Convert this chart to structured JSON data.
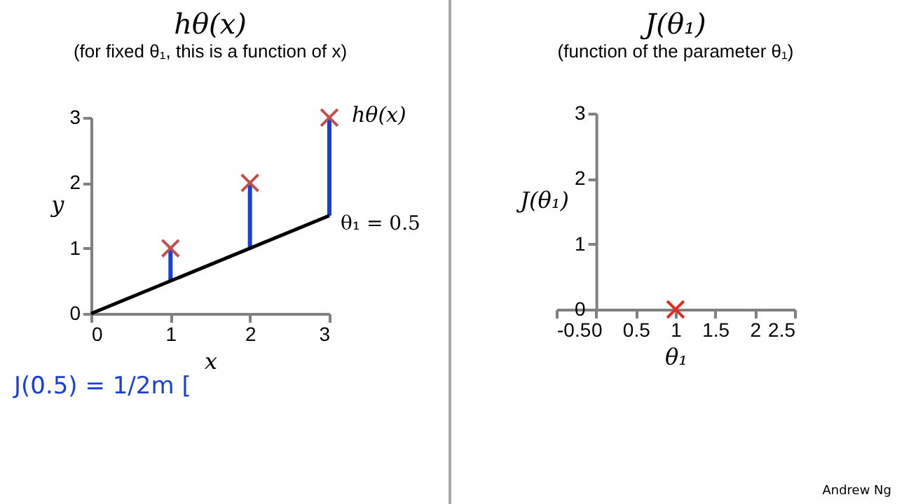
{
  "chart_data": [
    {
      "type": "scatter",
      "title": "hθ(x)",
      "subtitle": "(for fixed θ₁, this is a function of x)",
      "xlabel": "x",
      "ylabel": "y",
      "xlim": [
        0,
        3
      ],
      "ylim": [
        0,
        3
      ],
      "xticks": [
        0,
        1,
        2,
        3
      ],
      "yticks": [
        0,
        1,
        2,
        3
      ],
      "series": [
        {
          "marker": "cross",
          "color": "#c0504d",
          "x": [
            1,
            2,
            3
          ],
          "values": [
            1,
            2,
            3
          ],
          "errors": [
            [
              0.5,
              1
            ],
            [
              1,
              2
            ],
            [
              1.5,
              3
            ]
          ]
        },
        {
          "type": "line",
          "name": "hθ(x)",
          "color": "#000000",
          "x": [
            0,
            3
          ],
          "values": [
            0,
            1.5
          ]
        }
      ],
      "annotations": [
        {
          "text": "θ₁ = 0.5",
          "x": 3,
          "y": 1.5
        },
        "J(0.5) = 1/2m ["
      ]
    },
    {
      "type": "scatter",
      "title": "J(θ₁)",
      "subtitle": "(function of the parameter θ₁)",
      "xlabel": "θ₁",
      "ylabel": "J(θ₁)",
      "xlim": [
        -0.5,
        2.5
      ],
      "ylim": [
        0,
        3
      ],
      "xticks": [
        -0.5,
        0,
        0.5,
        1,
        1.5,
        2,
        2.5
      ],
      "yticks": [
        0,
        1,
        2,
        3
      ],
      "series": [
        {
          "marker": "cross",
          "color": "#e8251f",
          "x": [
            1
          ],
          "values": [
            0
          ]
        }
      ],
      "annotations": [
        "Andrew Ng"
      ]
    }
  ]
}
